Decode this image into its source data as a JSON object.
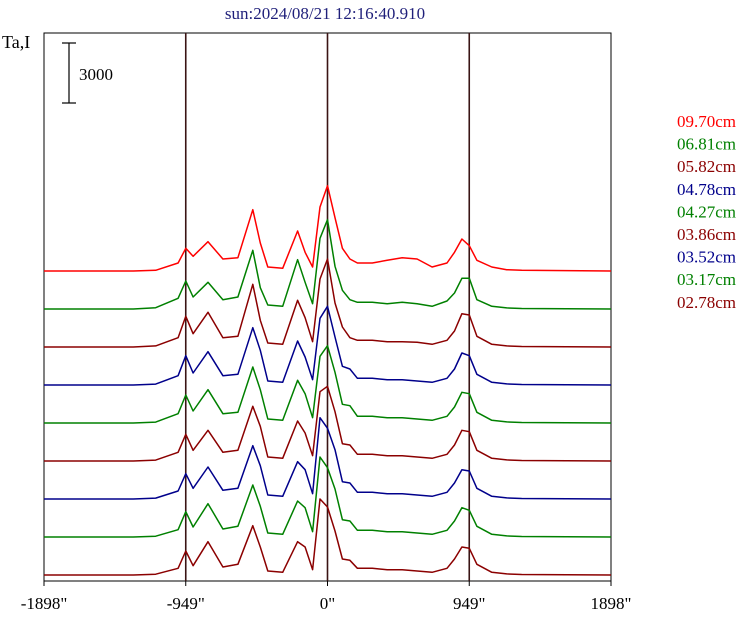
{
  "chart_data": {
    "type": "line",
    "title": "sun:2024/08/21 12:16:40.910",
    "ylabel": "Ta,I",
    "scale_bar_label": "3000",
    "scale_bar_value": 3000,
    "xlim": [
      -1898,
      1898
    ],
    "x_ticks": [
      {
        "value": -1898,
        "label": "-1898\""
      },
      {
        "value": -949,
        "label": "-949\""
      },
      {
        "value": 0,
        "label": "0\""
      },
      {
        "value": 949,
        "label": "949\""
      },
      {
        "value": 1898,
        "label": "1898\""
      }
    ],
    "vertical_markers": [
      -949,
      0,
      949
    ],
    "profile_features": {
      "x": [
        -1898,
        -1300,
        -1150,
        -1000,
        -949,
        -900,
        -800,
        -700,
        -600,
        -500,
        -450,
        -400,
        -300,
        -200,
        -150,
        -100,
        -50,
        0,
        50,
        100,
        150,
        200,
        300,
        400,
        500,
        600,
        700,
        800,
        850,
        900,
        949,
        1000,
        1100,
        1200,
        1300,
        1898
      ],
      "note_units": "arcsec"
    },
    "series": [
      {
        "name": "09.70cm",
        "color": "#ff0000",
        "baseline": 0,
        "values": [
          0,
          0,
          50,
          600,
          1700,
          1100,
          2200,
          900,
          1000,
          4600,
          2100,
          300,
          200,
          3000,
          1400,
          300,
          4800,
          6400,
          4000,
          1700,
          900,
          600,
          600,
          800,
          1000,
          900,
          300,
          600,
          1400,
          2400,
          1900,
          800,
          300,
          100,
          50,
          0
        ]
      },
      {
        "name": "06.81cm",
        "color": "#008000",
        "baseline": 0,
        "values": [
          0,
          0,
          100,
          800,
          2100,
          900,
          2000,
          700,
          900,
          4400,
          1600,
          300,
          200,
          3700,
          2000,
          400,
          5300,
          6700,
          3200,
          1400,
          700,
          500,
          500,
          400,
          500,
          400,
          200,
          600,
          1200,
          2300,
          2300,
          700,
          200,
          80,
          40,
          0
        ]
      },
      {
        "name": "05.82cm",
        "color": "#8b0000",
        "baseline": 0,
        "values": [
          0,
          0,
          80,
          700,
          2300,
          1000,
          2600,
          700,
          800,
          4700,
          2000,
          300,
          200,
          3500,
          2200,
          400,
          5100,
          6600,
          3300,
          1500,
          700,
          500,
          500,
          400,
          400,
          350,
          200,
          500,
          1200,
          2500,
          2400,
          800,
          200,
          80,
          40,
          0
        ]
      },
      {
        "name": "04.78cm",
        "color": "#00008b",
        "baseline": 0,
        "values": [
          0,
          0,
          70,
          700,
          2200,
          900,
          2500,
          700,
          800,
          4300,
          2600,
          300,
          200,
          3300,
          2100,
          400,
          5000,
          5900,
          3600,
          1400,
          1200,
          500,
          500,
          400,
          400,
          300,
          200,
          500,
          1200,
          2400,
          2200,
          800,
          200,
          80,
          40,
          0
        ]
      },
      {
        "name": "04.27cm",
        "color": "#008000",
        "baseline": 0,
        "values": [
          0,
          0,
          70,
          700,
          2100,
          900,
          2500,
          700,
          800,
          4200,
          2500,
          300,
          200,
          3200,
          2200,
          400,
          5000,
          5800,
          3800,
          1400,
          1300,
          500,
          500,
          400,
          400,
          300,
          200,
          500,
          1200,
          2300,
          2200,
          800,
          200,
          80,
          40,
          0
        ]
      },
      {
        "name": "03.86cm",
        "color": "#8b0000",
        "baseline": 0,
        "values": [
          0,
          0,
          70,
          650,
          2000,
          800,
          2300,
          650,
          800,
          4100,
          2600,
          300,
          200,
          3000,
          2100,
          400,
          5200,
          5600,
          3700,
          1300,
          1200,
          500,
          500,
          400,
          400,
          300,
          200,
          500,
          1200,
          2300,
          2200,
          800,
          200,
          80,
          40,
          0
        ]
      },
      {
        "name": "03.52cm",
        "color": "#00008b",
        "baseline": 0,
        "values": [
          0,
          0,
          70,
          600,
          1900,
          800,
          2400,
          650,
          800,
          4000,
          2500,
          300,
          200,
          2800,
          2200,
          400,
          6100,
          5300,
          3700,
          1300,
          1200,
          500,
          500,
          400,
          400,
          300,
          200,
          500,
          1200,
          2200,
          2100,
          800,
          200,
          80,
          40,
          0
        ]
      },
      {
        "name": "03.17cm",
        "color": "#008000",
        "baseline": 0,
        "values": [
          0,
          0,
          60,
          550,
          1900,
          750,
          2500,
          600,
          800,
          3900,
          2300,
          300,
          200,
          2700,
          2200,
          400,
          6000,
          5200,
          3600,
          1300,
          1200,
          500,
          500,
          400,
          400,
          300,
          200,
          500,
          1200,
          2200,
          2000,
          800,
          200,
          80,
          40,
          0
        ]
      },
      {
        "name": "02.78cm",
        "color": "#8b0000",
        "baseline": 0,
        "values": [
          0,
          0,
          60,
          500,
          1800,
          700,
          2500,
          600,
          800,
          3700,
          2100,
          300,
          200,
          2500,
          2100,
          400,
          5700,
          5100,
          3300,
          1200,
          1100,
          500,
          500,
          400,
          400,
          300,
          200,
          500,
          1200,
          2100,
          2000,
          800,
          200,
          80,
          40,
          0
        ]
      }
    ]
  }
}
